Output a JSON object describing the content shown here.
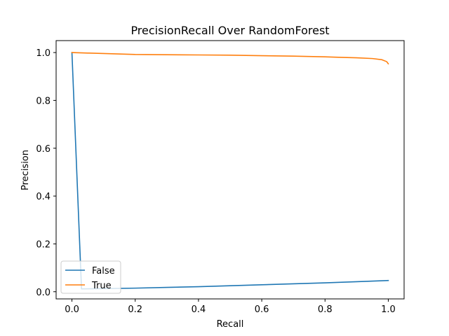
{
  "chart_data": {
    "type": "line",
    "title": "PrecisionRecall Over RandomForest",
    "xlabel": "Recall",
    "ylabel": "Precision",
    "xlim": [
      -0.05,
      1.05
    ],
    "ylim": [
      -0.03,
      1.05
    ],
    "xticks": [
      0.0,
      0.2,
      0.4,
      0.6,
      0.8,
      1.0
    ],
    "xtick_labels": [
      "0.0",
      "0.2",
      "0.4",
      "0.6",
      "0.8",
      "1.0"
    ],
    "yticks": [
      0.0,
      0.2,
      0.4,
      0.6,
      0.8,
      1.0
    ],
    "ytick_labels": [
      "0.0",
      "0.2",
      "0.4",
      "0.6",
      "0.8",
      "1.0"
    ],
    "grid": false,
    "legend_position": "lower-left",
    "series": [
      {
        "name": "False",
        "color": "#1f77b4",
        "x": [
          0.0,
          0.03,
          0.03,
          0.1,
          0.2,
          0.3,
          0.4,
          0.5,
          0.6,
          0.7,
          0.8,
          0.9,
          1.0
        ],
        "y": [
          1.0,
          0.02,
          0.012,
          0.013,
          0.015,
          0.018,
          0.021,
          0.025,
          0.029,
          0.033,
          0.037,
          0.042,
          0.047
        ]
      },
      {
        "name": "True",
        "color": "#ff7f0e",
        "x": [
          0.0,
          0.05,
          0.1,
          0.2,
          0.3,
          0.4,
          0.5,
          0.6,
          0.7,
          0.8,
          0.85,
          0.9,
          0.95,
          0.98,
          0.995,
          1.0
        ],
        "y": [
          1.0,
          0.998,
          0.996,
          0.992,
          0.991,
          0.99,
          0.989,
          0.987,
          0.985,
          0.982,
          0.98,
          0.978,
          0.975,
          0.97,
          0.962,
          0.953
        ]
      }
    ]
  }
}
